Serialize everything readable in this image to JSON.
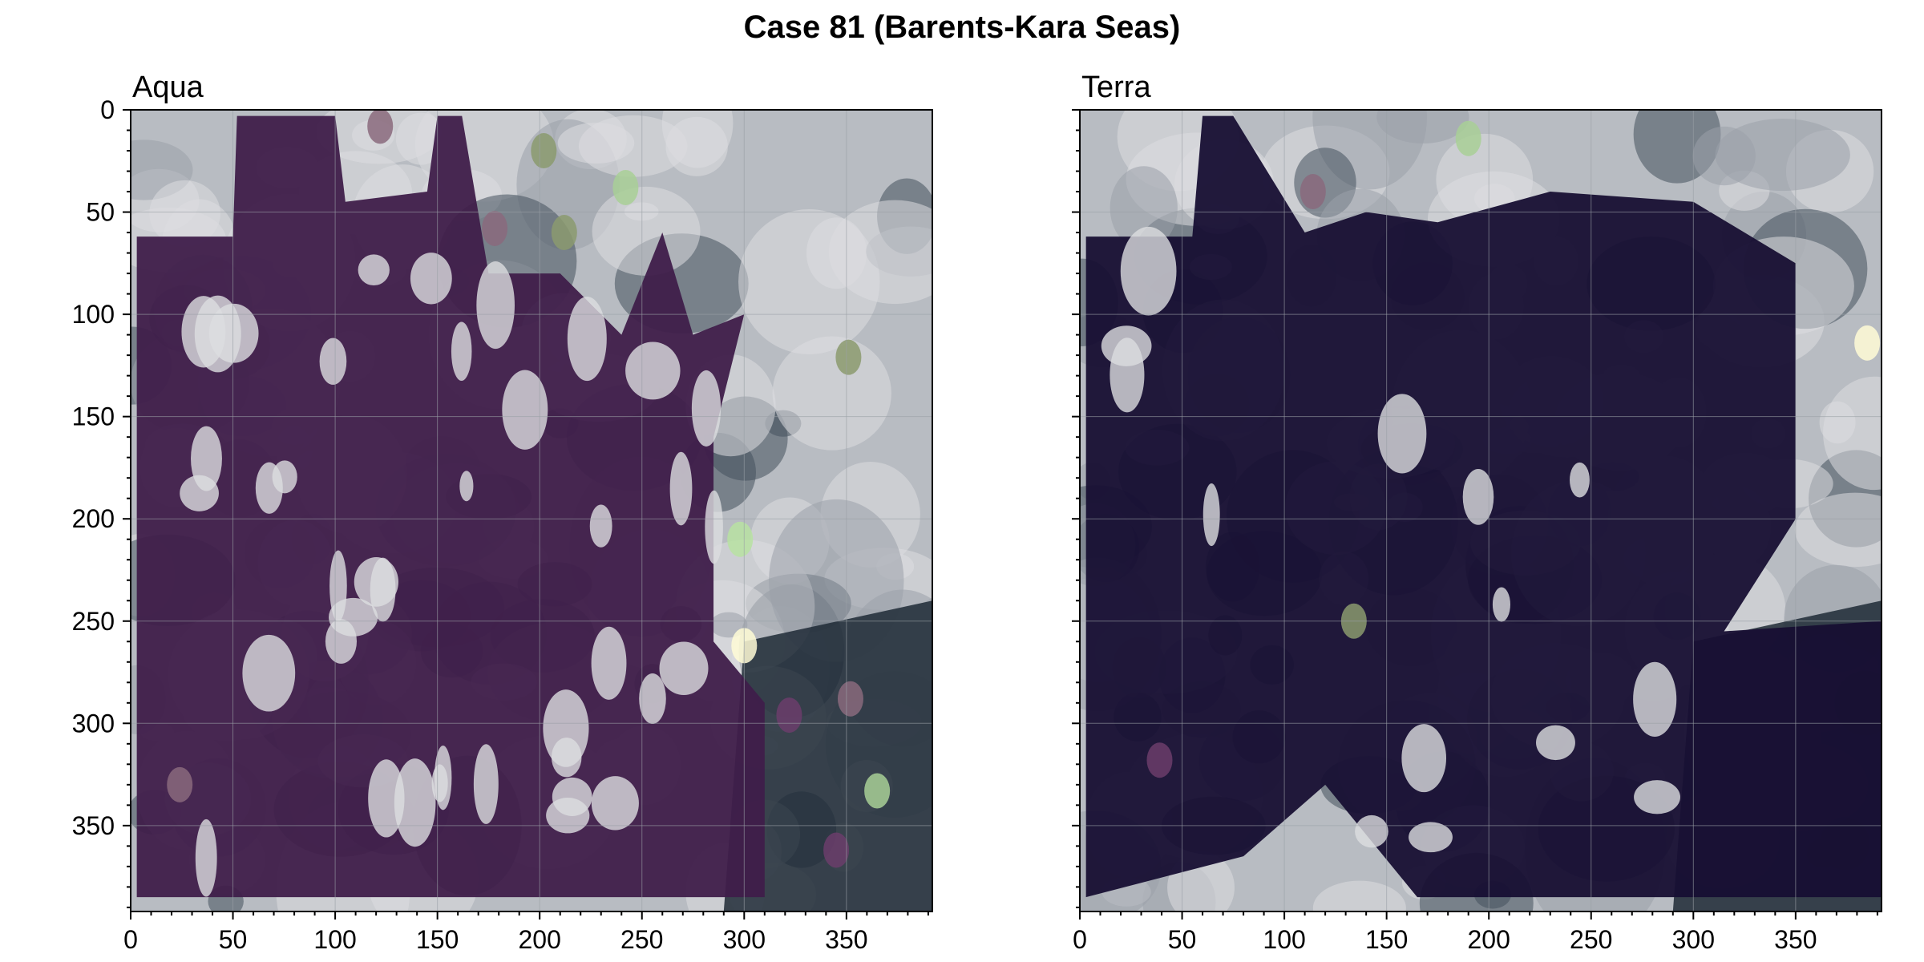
{
  "figure": {
    "title": "Case 81 (Barents-Kara Seas)"
  },
  "colors": {
    "background_ocean": "#1e2a36",
    "cloud_light": "#dcdde0",
    "cloud_mid": "#b8bcc2",
    "aqua_mask": "#3f1d4a",
    "terra_mask": "#170f33",
    "floe_green_light": "#b7e2a2",
    "floe_green": "#a8cf96",
    "floe_olive": "#8b9a6e",
    "floe_mauve": "#8a6a7c",
    "floe_magenta": "#6b3d6b",
    "floe_cream": "#fffbd6",
    "frame": "#000000",
    "grid": "#9aa0a6"
  },
  "chart_data": [
    {
      "type": "image",
      "title": "Aqua",
      "xlabel": "",
      "ylabel": "",
      "xlim": [
        0,
        392
      ],
      "ylim": [
        392,
        0
      ],
      "xticks": [
        0,
        50,
        100,
        150,
        200,
        250,
        300,
        350
      ],
      "yticks": [
        0,
        50,
        100,
        150,
        200,
        250,
        300,
        350
      ],
      "grid": true,
      "features": [
        {
          "kind": "floe",
          "color": "floe_green",
          "x": 242,
          "y": 38
        },
        {
          "kind": "floe",
          "color": "floe_olive",
          "x": 212,
          "y": 60
        },
        {
          "kind": "floe",
          "color": "floe_olive",
          "x": 202,
          "y": 20
        },
        {
          "kind": "floe",
          "color": "floe_mauve",
          "x": 178,
          "y": 58
        },
        {
          "kind": "floe",
          "color": "floe_mauve",
          "x": 122,
          "y": 8
        },
        {
          "kind": "floe",
          "color": "floe_green_light",
          "x": 298,
          "y": 210
        },
        {
          "kind": "floe",
          "color": "floe_cream",
          "x": 300,
          "y": 262
        },
        {
          "kind": "floe",
          "color": "floe_mauve",
          "x": 352,
          "y": 288
        },
        {
          "kind": "floe",
          "color": "floe_magenta",
          "x": 345,
          "y": 362
        },
        {
          "kind": "floe",
          "color": "floe_green",
          "x": 365,
          "y": 333
        },
        {
          "kind": "floe",
          "color": "floe_magenta",
          "x": 322,
          "y": 296
        },
        {
          "kind": "floe",
          "color": "floe_olive",
          "x": 351,
          "y": 121
        },
        {
          "kind": "floe",
          "color": "floe_mauve",
          "x": 24,
          "y": 330
        }
      ]
    },
    {
      "type": "image",
      "title": "Terra",
      "xlabel": "",
      "ylabel": "",
      "xlim": [
        0,
        392
      ],
      "ylim": [
        392,
        0
      ],
      "xticks": [
        0,
        50,
        100,
        150,
        200,
        250,
        300,
        350
      ],
      "yticks": [],
      "grid": true,
      "features": [
        {
          "kind": "floe",
          "color": "floe_green",
          "x": 190,
          "y": 14
        },
        {
          "kind": "floe",
          "color": "floe_mauve",
          "x": 114,
          "y": 40
        },
        {
          "kind": "floe",
          "color": "floe_olive",
          "x": 134,
          "y": 250
        },
        {
          "kind": "floe",
          "color": "floe_magenta",
          "x": 39,
          "y": 318
        },
        {
          "kind": "floe",
          "color": "floe_cream",
          "x": 385,
          "y": 114
        }
      ]
    }
  ]
}
